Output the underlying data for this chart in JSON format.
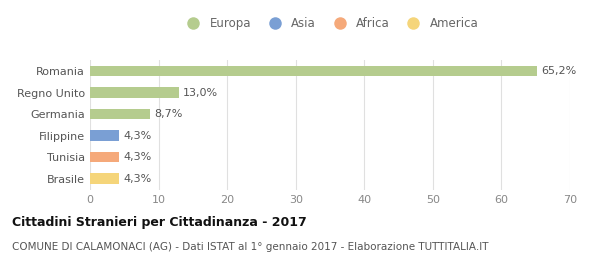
{
  "categories": [
    "Brasile",
    "Tunisia",
    "Filippine",
    "Germania",
    "Regno Unito",
    "Romania"
  ],
  "values": [
    4.3,
    4.3,
    4.3,
    8.7,
    13.0,
    65.2
  ],
  "labels": [
    "4,3%",
    "4,3%",
    "4,3%",
    "8,7%",
    "13,0%",
    "65,2%"
  ],
  "colors": [
    "#f5d57a",
    "#f5a97a",
    "#7a9fd4",
    "#b5cc8e",
    "#b5cc8e",
    "#b5cc8e"
  ],
  "legend_entries": [
    {
      "label": "Europa",
      "color": "#b5cc8e"
    },
    {
      "label": "Asia",
      "color": "#7a9fd4"
    },
    {
      "label": "Africa",
      "color": "#f5a97a"
    },
    {
      "label": "America",
      "color": "#f5d57a"
    }
  ],
  "xlim": [
    0,
    70
  ],
  "xticks": [
    0,
    10,
    20,
    30,
    40,
    50,
    60,
    70
  ],
  "title": "Cittadini Stranieri per Cittadinanza - 2017",
  "subtitle": "COMUNE DI CALAMONACI (AG) - Dati ISTAT al 1° gennaio 2017 - Elaborazione TUTTITALIA.IT",
  "title_fontsize": 9,
  "subtitle_fontsize": 7.5,
  "bg_color": "#ffffff",
  "grid_color": "#e0e0e0",
  "bar_height": 0.5,
  "label_fontsize": 8,
  "tick_fontsize": 8,
  "legend_fontsize": 8.5
}
